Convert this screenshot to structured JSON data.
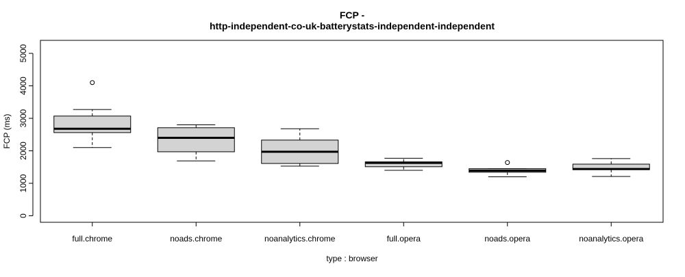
{
  "chart_data": {
    "type": "boxplot",
    "title_line1": "FCP -",
    "title_line2": "http-independent-co-uk-batterystats-independent-independent",
    "xlabel": "type : browser",
    "ylabel": "FCP (ms)",
    "ylim": [
      -200,
      5400
    ],
    "yticks": [
      "0",
      "1000",
      "2000",
      "3000",
      "4000",
      "5000"
    ],
    "ytick_values": [
      0,
      1000,
      2000,
      3000,
      4000,
      5000
    ],
    "grid": false,
    "box_fill": "#d3d3d3",
    "categories": [
      "full.chrome",
      "noads.chrome",
      "noanalytics.chrome",
      "full.opera",
      "noads.opera",
      "noanalytics.opera"
    ],
    "boxes": [
      {
        "category": "full.chrome",
        "whisker_low": 2100,
        "q1": 2560,
        "median": 2680,
        "q3": 3070,
        "whisker_high": 3270,
        "outliers": [
          4100
        ]
      },
      {
        "category": "noads.chrome",
        "whisker_low": 1690,
        "q1": 1970,
        "median": 2400,
        "q3": 2710,
        "whisker_high": 2800,
        "outliers": []
      },
      {
        "category": "noanalytics.chrome",
        "whisker_low": 1530,
        "q1": 1610,
        "median": 1970,
        "q3": 2330,
        "whisker_high": 2680,
        "outliers": []
      },
      {
        "category": "full.opera",
        "whisker_low": 1400,
        "q1": 1510,
        "median": 1630,
        "q3": 1660,
        "whisker_high": 1770,
        "outliers": []
      },
      {
        "category": "noads.opera",
        "whisker_low": 1200,
        "q1": 1340,
        "median": 1390,
        "q3": 1450,
        "whisker_high": 1450,
        "outliers": [
          1640
        ]
      },
      {
        "category": "noanalytics.opera",
        "whisker_low": 1210,
        "q1": 1420,
        "median": 1440,
        "q3": 1590,
        "whisker_high": 1760,
        "outliers": []
      }
    ]
  }
}
